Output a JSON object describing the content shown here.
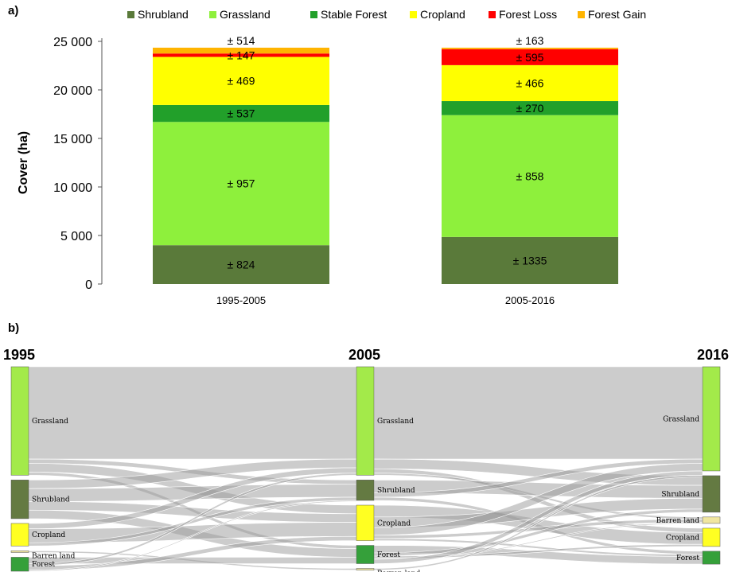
{
  "panel_a_label": "a)",
  "panel_b_label": "b)",
  "chart_data": [
    {
      "type": "bar",
      "stacked": true,
      "ylabel": "Cover (ha)",
      "ylim": [
        0,
        25000
      ],
      "yticks": [
        0,
        5000,
        10000,
        15000,
        20000,
        25000
      ],
      "ytick_labels": [
        "0",
        "5 000",
        "10 000",
        "15 000",
        "20 000",
        "25 000"
      ],
      "categories": [
        "1995-2005",
        "2005-2016"
      ],
      "legend_position": "top",
      "series": [
        {
          "name": "Shrubland",
          "color": "#5a7a3a",
          "values": [
            4000,
            4850
          ],
          "error_labels": [
            "± 824",
            "± 1335"
          ]
        },
        {
          "name": "Grassland",
          "color": "#8ef03c",
          "values": [
            12700,
            12550
          ],
          "error_labels": [
            "± 957",
            "± 858"
          ]
        },
        {
          "name": "Stable Forest",
          "color": "#22a02a",
          "values": [
            1750,
            1450
          ],
          "error_labels": [
            "± 537",
            "± 270"
          ]
        },
        {
          "name": "Cropland",
          "color": "#ffff00",
          "values": [
            4950,
            3700
          ],
          "error_labels": [
            "± 469",
            "± 466"
          ]
        },
        {
          "name": "Forest Loss",
          "color": "#ff0000",
          "values": [
            350,
            1650
          ],
          "error_labels": [
            "± 147",
            "± 595"
          ]
        },
        {
          "name": "Forest Gain",
          "color": "#ffb400",
          "values": [
            600,
            150
          ],
          "error_labels": [
            "± 514",
            "± 163"
          ]
        }
      ]
    },
    {
      "type": "sankey",
      "years": [
        "1995",
        "2005",
        "2016"
      ],
      "columns": [
        {
          "year": "1995",
          "nodes": [
            {
              "name": "Grassland",
              "color": "#a3ea4a",
              "share": 0.505
            },
            {
              "name": "Shrubland",
              "color": "#647a42",
              "share": 0.18
            },
            {
              "name": "Cropland",
              "color": "#ffff22",
              "share": 0.105
            },
            {
              "name": "Barren land",
              "color": "#f0e6a0",
              "share": 0.008
            },
            {
              "name": "Forest",
              "color": "#35a03a",
              "share": 0.065
            }
          ]
        },
        {
          "year": "2005",
          "nodes": [
            {
              "name": "Grassland",
              "color": "#a3ea4a",
              "share": 0.505
            },
            {
              "name": "Shrubland",
              "color": "#647a42",
              "share": 0.095
            },
            {
              "name": "Cropland",
              "color": "#ffff22",
              "share": 0.165
            },
            {
              "name": "Forest",
              "color": "#35a03a",
              "share": 0.085
            },
            {
              "name": "Barren land",
              "color": "#f0e6a0",
              "share": 0.008
            }
          ]
        },
        {
          "year": "2016",
          "nodes": [
            {
              "name": "Grassland",
              "color": "#a3ea4a",
              "share": 0.485
            },
            {
              "name": "Shrubland",
              "color": "#647a42",
              "share": 0.17
            },
            {
              "name": "Barren land",
              "color": "#f0e6a0",
              "share": 0.03
            },
            {
              "name": "Cropland",
              "color": "#ffff22",
              "share": 0.085
            },
            {
              "name": "Forest",
              "color": "#35a03a",
              "share": 0.06
            }
          ]
        }
      ],
      "flows": [
        {
          "from_col": 0,
          "from": "Grassland",
          "to": "Grassland",
          "value": 0.43
        },
        {
          "from_col": 0,
          "from": "Grassland",
          "to": "Shrubland",
          "value": 0.02
        },
        {
          "from_col": 0,
          "from": "Grassland",
          "to": "Cropland",
          "value": 0.04
        },
        {
          "from_col": 0,
          "from": "Grassland",
          "to": "Forest",
          "value": 0.015
        },
        {
          "from_col": 0,
          "from": "Shrubland",
          "to": "Grassland",
          "value": 0.04
        },
        {
          "from_col": 0,
          "from": "Shrubland",
          "to": "Shrubland",
          "value": 0.06
        },
        {
          "from_col": 0,
          "from": "Shrubland",
          "to": "Cropland",
          "value": 0.04
        },
        {
          "from_col": 0,
          "from": "Shrubland",
          "to": "Forest",
          "value": 0.04
        },
        {
          "from_col": 0,
          "from": "Cropland",
          "to": "Grassland",
          "value": 0.025
        },
        {
          "from_col": 0,
          "from": "Cropland",
          "to": "Cropland",
          "value": 0.065
        },
        {
          "from_col": 0,
          "from": "Cropland",
          "to": "Shrubland",
          "value": 0.015
        },
        {
          "from_col": 0,
          "from": "Barren land",
          "to": "Barren land",
          "value": 0.008
        },
        {
          "from_col": 0,
          "from": "Forest",
          "to": "Forest",
          "value": 0.03
        },
        {
          "from_col": 0,
          "from": "Forest",
          "to": "Grassland",
          "value": 0.01
        },
        {
          "from_col": 0,
          "from": "Forest",
          "to": "Cropland",
          "value": 0.02
        },
        {
          "from_col": 0,
          "from": "Forest",
          "to": "Shrubland",
          "value": 0.005
        },
        {
          "from_col": 1,
          "from": "Grassland",
          "to": "Grassland",
          "value": 0.43
        },
        {
          "from_col": 1,
          "from": "Grassland",
          "to": "Shrubland",
          "value": 0.045
        },
        {
          "from_col": 1,
          "from": "Grassland",
          "to": "Cropland",
          "value": 0.02
        },
        {
          "from_col": 1,
          "from": "Grassland",
          "to": "Barren land",
          "value": 0.01
        },
        {
          "from_col": 1,
          "from": "Shrubland",
          "to": "Shrubland",
          "value": 0.06
        },
        {
          "from_col": 1,
          "from": "Shrubland",
          "to": "Grassland",
          "value": 0.02
        },
        {
          "from_col": 1,
          "from": "Shrubland",
          "to": "Forest",
          "value": 0.015
        },
        {
          "from_col": 1,
          "from": "Cropland",
          "to": "Cropland",
          "value": 0.055
        },
        {
          "from_col": 1,
          "from": "Cropland",
          "to": "Shrubland",
          "value": 0.05
        },
        {
          "from_col": 1,
          "from": "Cropland",
          "to": "Grassland",
          "value": 0.035
        },
        {
          "from_col": 1,
          "from": "Cropland",
          "to": "Barren land",
          "value": 0.015
        },
        {
          "from_col": 1,
          "from": "Cropland",
          "to": "Forest",
          "value": 0.01
        },
        {
          "from_col": 1,
          "from": "Forest",
          "to": "Forest",
          "value": 0.035
        },
        {
          "from_col": 1,
          "from": "Forest",
          "to": "Shrubland",
          "value": 0.015
        },
        {
          "from_col": 1,
          "from": "Forest",
          "to": "Cropland",
          "value": 0.01
        },
        {
          "from_col": 1,
          "from": "Forest",
          "to": "Barren land",
          "value": 0.005
        },
        {
          "from_col": 1,
          "from": "Forest",
          "to": "Grassland",
          "value": 0.02
        },
        {
          "from_col": 1,
          "from": "Barren land",
          "to": "Grassland",
          "value": 0.008
        }
      ]
    }
  ]
}
